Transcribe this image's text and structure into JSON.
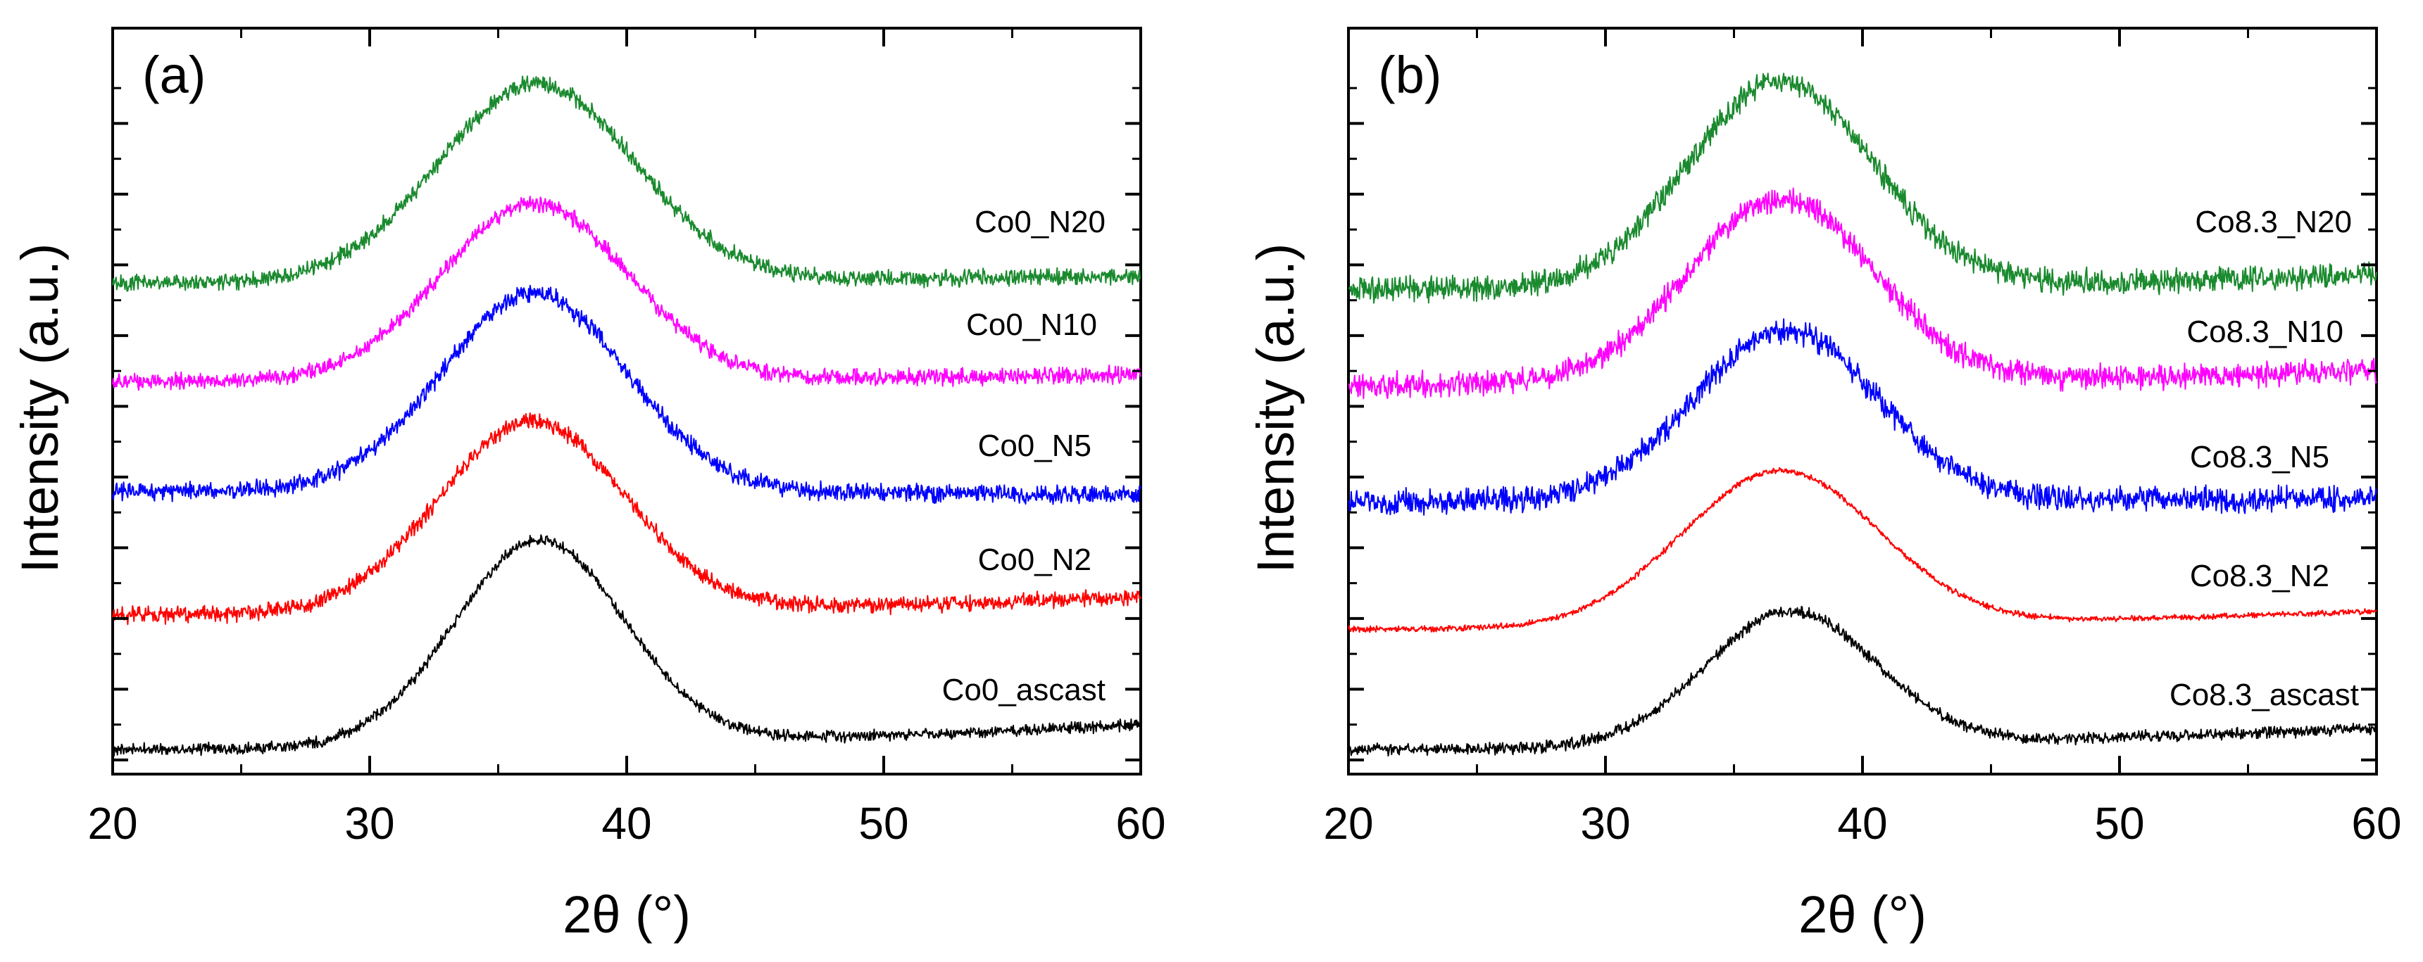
{
  "chart_data": [
    {
      "type": "line",
      "panel_label": "(a)",
      "xlabel": "2θ (°)",
      "ylabel": "Intensity (a.u.)",
      "xlim": [
        20,
        60
      ],
      "ylim": [
        0,
        100
      ],
      "x_ticks": [
        20,
        30,
        40,
        50,
        60
      ],
      "x_tick_labels": [
        "20",
        "30",
        "40",
        "50",
        "60"
      ],
      "legend": "labels-on-curves",
      "series": [
        {
          "name": "Co0_N20",
          "color": "#1a8a2e",
          "baseline": 69.5,
          "peak_height": 28,
          "center": 36.5,
          "width": 3.8,
          "right_level": 70.5,
          "noise": 1.0
        },
        {
          "name": "Co0_N10",
          "color": "#ff00ff",
          "baseline": 55.5,
          "peak_height": 25,
          "center": 36.4,
          "width": 3.6,
          "right_level": 56.5,
          "noise": 1.0
        },
        {
          "name": "Co0_N5",
          "color": "#0000ff",
          "baseline": 40.0,
          "peak_height": 28,
          "center": 36.4,
          "width": 3.6,
          "right_level": 39.5,
          "noise": 1.1
        },
        {
          "name": "Co0_N2",
          "color": "#ff0000",
          "baseline": 22.5,
          "peak_height": 27,
          "center": 36.3,
          "width": 3.6,
          "right_level": 25.0,
          "noise": 1.0
        },
        {
          "name": "Co0_ascast",
          "color": "#000000",
          "baseline": 3.5,
          "peak_height": 29,
          "center": 36.6,
          "width": 3.3,
          "right_level": 7.0,
          "noise": 0.7
        }
      ]
    },
    {
      "type": "line",
      "panel_label": "(b)",
      "xlabel": "2θ (°)",
      "ylabel": "Intensity (a.u.)",
      "xlim": [
        20,
        60
      ],
      "ylim": [
        0,
        100
      ],
      "x_ticks": [
        20,
        30,
        40,
        50,
        60
      ],
      "x_tick_labels": [
        "20",
        "30",
        "40",
        "50",
        "60"
      ],
      "legend": "labels-on-curves",
      "series": [
        {
          "name": "Co8.3_N20",
          "color": "#1a8a2e",
          "baseline": 68.5,
          "peak_height": 29,
          "center": 36.8,
          "width": 3.6,
          "right_level": 70.5,
          "noise": 1.5
        },
        {
          "name": "Co8.3_N10",
          "color": "#ff00ff",
          "baseline": 55.0,
          "peak_height": 26,
          "center": 36.8,
          "width": 3.6,
          "right_level": 57.0,
          "noise": 1.5
        },
        {
          "name": "Co8.3_N5",
          "color": "#0000ff",
          "baseline": 38.5,
          "peak_height": 24,
          "center": 37.0,
          "width": 3.6,
          "right_level": 39.0,
          "noise": 1.5
        },
        {
          "name": "Co8.3_N2",
          "color": "#ff0000",
          "baseline": 20.5,
          "peak_height": 22,
          "center": 36.8,
          "width": 3.8,
          "right_level": 23.0,
          "noise": 0.35
        },
        {
          "name": "Co8.3_ascast",
          "color": "#000000",
          "baseline": 3.5,
          "peak_height": 19,
          "center": 37.2,
          "width": 3.3,
          "right_level": 6.5,
          "noise": 0.7
        }
      ]
    }
  ]
}
